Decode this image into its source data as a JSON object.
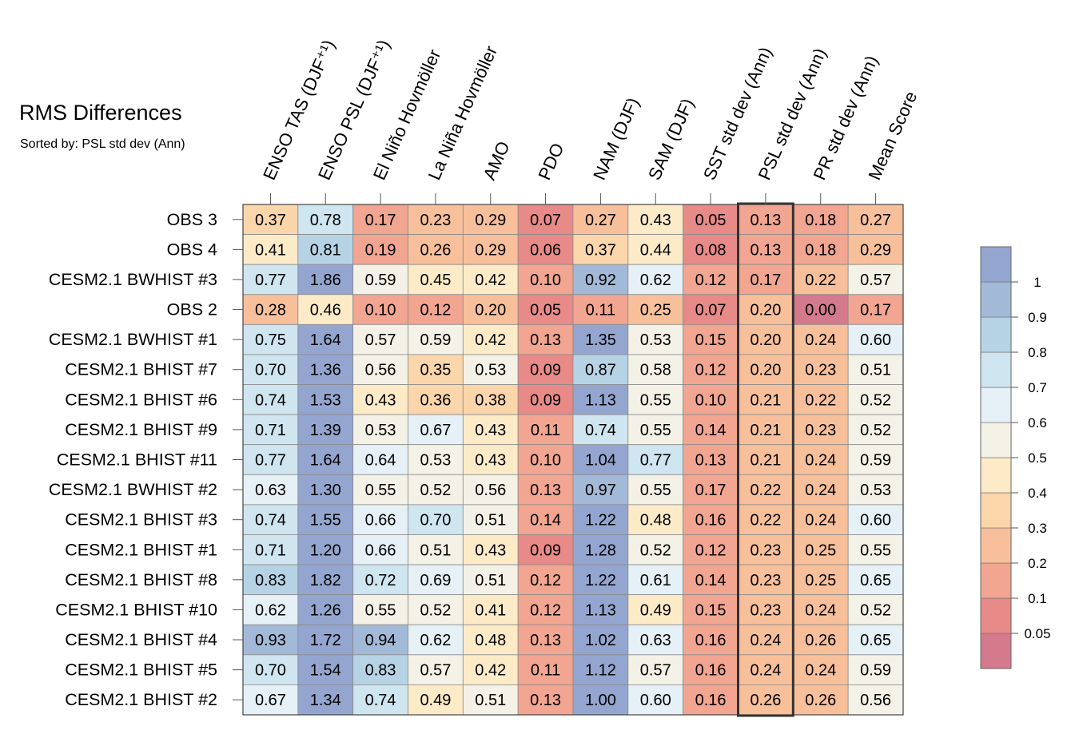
{
  "chart_data": {
    "type": "heatmap",
    "title": "RMS Differences",
    "subtitle": "Sorted by: PSL std dev (Ann)",
    "columns": [
      "ENSO TAS (DJF⁺¹)",
      "ENSO PSL (DJF⁺¹)",
      "El Niño Hovmöller",
      "La Niña Hovmöller",
      "AMO",
      "PDO",
      "NAM (DJF)",
      "SAM (DJF)",
      "SST std dev (Ann)",
      "PSL std dev (Ann)",
      "PR std dev (Ann)",
      "Mean Score"
    ],
    "rows": [
      "OBS 3",
      "OBS 4",
      "CESM2.1 BWHIST #3",
      "OBS 2",
      "CESM2.1 BWHIST #1",
      "CESM2.1 BHIST #7",
      "CESM2.1 BHIST #6",
      "CESM2.1 BHIST #9",
      "CESM2.1 BHIST #11",
      "CESM2.1 BWHIST #2",
      "CESM2.1 BHIST #3",
      "CESM2.1 BHIST #1",
      "CESM2.1 BHIST #8",
      "CESM2.1 BHIST #10",
      "CESM2.1 BHIST #4",
      "CESM2.1 BHIST #5",
      "CESM2.1 BHIST #2"
    ],
    "values": [
      [
        "0.37",
        "0.78",
        "0.17",
        "0.23",
        "0.29",
        "0.07",
        "0.27",
        "0.43",
        "0.05",
        "0.13",
        "0.18",
        "0.27"
      ],
      [
        "0.41",
        "0.81",
        "0.19",
        "0.26",
        "0.29",
        "0.06",
        "0.37",
        "0.44",
        "0.08",
        "0.13",
        "0.18",
        "0.29"
      ],
      [
        "0.77",
        "1.86",
        "0.59",
        "0.45",
        "0.42",
        "0.10",
        "0.92",
        "0.62",
        "0.12",
        "0.17",
        "0.22",
        "0.57"
      ],
      [
        "0.28",
        "0.46",
        "0.10",
        "0.12",
        "0.20",
        "0.05",
        "0.11",
        "0.25",
        "0.07",
        "0.20",
        "0.00",
        "0.17"
      ],
      [
        "0.75",
        "1.64",
        "0.57",
        "0.59",
        "0.42",
        "0.13",
        "1.35",
        "0.53",
        "0.15",
        "0.20",
        "0.24",
        "0.60"
      ],
      [
        "0.70",
        "1.36",
        "0.56",
        "0.35",
        "0.53",
        "0.09",
        "0.87",
        "0.58",
        "0.12",
        "0.20",
        "0.23",
        "0.51"
      ],
      [
        "0.74",
        "1.53",
        "0.43",
        "0.36",
        "0.38",
        "0.09",
        "1.13",
        "0.55",
        "0.10",
        "0.21",
        "0.22",
        "0.52"
      ],
      [
        "0.71",
        "1.39",
        "0.53",
        "0.67",
        "0.43",
        "0.11",
        "0.74",
        "0.55",
        "0.14",
        "0.21",
        "0.23",
        "0.52"
      ],
      [
        "0.77",
        "1.64",
        "0.64",
        "0.53",
        "0.43",
        "0.10",
        "1.04",
        "0.77",
        "0.13",
        "0.21",
        "0.24",
        "0.59"
      ],
      [
        "0.63",
        "1.30",
        "0.55",
        "0.52",
        "0.56",
        "0.13",
        "0.97",
        "0.55",
        "0.17",
        "0.22",
        "0.24",
        "0.53"
      ],
      [
        "0.74",
        "1.55",
        "0.66",
        "0.70",
        "0.51",
        "0.14",
        "1.22",
        "0.48",
        "0.16",
        "0.22",
        "0.24",
        "0.60"
      ],
      [
        "0.71",
        "1.20",
        "0.66",
        "0.51",
        "0.43",
        "0.09",
        "1.28",
        "0.52",
        "0.12",
        "0.23",
        "0.25",
        "0.55"
      ],
      [
        "0.83",
        "1.82",
        "0.72",
        "0.69",
        "0.51",
        "0.12",
        "1.22",
        "0.61",
        "0.14",
        "0.23",
        "0.25",
        "0.65"
      ],
      [
        "0.62",
        "1.26",
        "0.55",
        "0.52",
        "0.41",
        "0.12",
        "1.13",
        "0.49",
        "0.15",
        "0.23",
        "0.24",
        "0.52"
      ],
      [
        "0.93",
        "1.72",
        "0.94",
        "0.62",
        "0.48",
        "0.13",
        "1.02",
        "0.63",
        "0.16",
        "0.24",
        "0.26",
        "0.65"
      ],
      [
        "0.70",
        "1.54",
        "0.83",
        "0.57",
        "0.42",
        "0.11",
        "1.12",
        "0.57",
        "0.16",
        "0.24",
        "0.24",
        "0.59"
      ],
      [
        "0.67",
        "1.34",
        "0.74",
        "0.49",
        "0.51",
        "0.13",
        "1.00",
        "0.60",
        "0.16",
        "0.26",
        "0.26",
        "0.56"
      ]
    ],
    "highlighted_column": "PSL std dev (Ann)",
    "colorbar": {
      "levels": [
        0.05,
        0.1,
        0.2,
        0.3,
        0.4,
        0.5,
        0.6,
        0.7,
        0.8,
        0.9,
        1
      ],
      "labels": [
        "0.05",
        "0.1",
        "0.2",
        "0.3",
        "0.4",
        "0.5",
        "0.6",
        "0.7",
        "0.8",
        "0.9",
        "1"
      ],
      "colors": [
        "#d47a8c",
        "#e88a88",
        "#f2a590",
        "#f8c09a",
        "#fbd6aa",
        "#fdebc8",
        "#f4f2e6",
        "#e6f1f7",
        "#cfe5f0",
        "#b6d3e6",
        "#a3b9d8",
        "#94a6d0"
      ]
    }
  }
}
